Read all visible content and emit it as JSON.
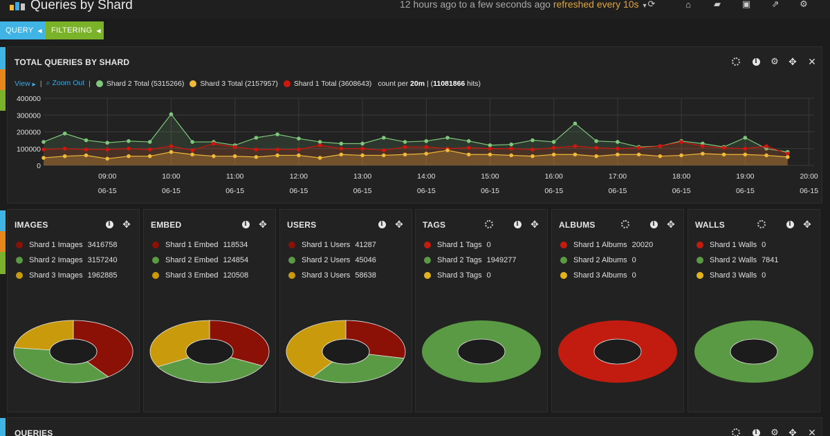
{
  "app": {
    "title": "Queries by Shard",
    "time_range": "12 hours ago to a few seconds ago",
    "refresh": "refreshed every 10s"
  },
  "nav_icons": [
    "refresh-icon",
    "home-icon",
    "folder-open-icon",
    "save-icon",
    "share-icon",
    "gear-icon"
  ],
  "pills": {
    "query": "QUERY",
    "filtering": "FILTERING"
  },
  "colors": {
    "shard1": "#c11c0f",
    "shard1_dark": "#8b1106",
    "shard2": "#5b9a45",
    "shard2_light": "#7fc87b",
    "shard3": "#e2b21f",
    "shard3_dark": "#c99a0c",
    "accent": "#3fa8e0"
  },
  "main_panel": {
    "title": "TOTAL QUERIES BY SHARD",
    "view_label": "View",
    "zoom_label": "Zoom Out",
    "legend": [
      {
        "label": "Shard 2 Total (5315266)"
      },
      {
        "label": "Shard 3 Total (2157957)"
      },
      {
        "label": "Shard 1 Total (3608643)"
      }
    ],
    "count_prefix": "count per",
    "interval": "20m",
    "hits_open": "| (",
    "hits": "11081866",
    "hits_close": "hits)"
  },
  "chart_data": {
    "type": "area",
    "title": "TOTAL QUERIES BY SHARD",
    "x_ticks": [
      {
        "time": "09:00",
        "date": "06-15"
      },
      {
        "time": "10:00",
        "date": "06-15"
      },
      {
        "time": "11:00",
        "date": "06-15"
      },
      {
        "time": "12:00",
        "date": "06-15"
      },
      {
        "time": "13:00",
        "date": "06-15"
      },
      {
        "time": "14:00",
        "date": "06-15"
      },
      {
        "time": "15:00",
        "date": "06-15"
      },
      {
        "time": "16:00",
        "date": "06-15"
      },
      {
        "time": "17:00",
        "date": "06-15"
      },
      {
        "time": "18:00",
        "date": "06-15"
      },
      {
        "time": "19:00",
        "date": "06-15"
      },
      {
        "time": "20:00",
        "date": "06-15"
      }
    ],
    "y_ticks": [
      0,
      100000,
      200000,
      300000,
      400000
    ],
    "y_tick_labels": [
      "0",
      "100000",
      "200000",
      "300000",
      "400000"
    ],
    "ylim": [
      0,
      400000
    ],
    "x_hours_start": 8.0,
    "x_hours_step": 0.3333,
    "series": [
      {
        "name": "Shard 2 Total (5315266)",
        "color": "#7fc87b",
        "values": [
          140000,
          190000,
          150000,
          135000,
          145000,
          140000,
          305000,
          140000,
          140000,
          120000,
          165000,
          185000,
          160000,
          140000,
          130000,
          130000,
          165000,
          140000,
          145000,
          165000,
          145000,
          120000,
          125000,
          150000,
          140000,
          250000,
          145000,
          140000,
          110000,
          115000,
          145000,
          130000,
          110000,
          165000,
          100000,
          80000
        ]
      },
      {
        "name": "Shard 1 Total (3608643)",
        "color": "#d0160d",
        "values": [
          95000,
          100000,
          95000,
          95000,
          100000,
          95000,
          115000,
          90000,
          130000,
          110000,
          95000,
          95000,
          95000,
          120000,
          100000,
          100000,
          90000,
          110000,
          110000,
          100000,
          105000,
          100000,
          100000,
          95000,
          105000,
          115000,
          105000,
          100000,
          105000,
          115000,
          140000,
          115000,
          105000,
          100000,
          115000,
          70000
        ]
      },
      {
        "name": "Shard 3 Total (2157957)",
        "color": "#f0b93a",
        "values": [
          45000,
          55000,
          60000,
          40000,
          55000,
          55000,
          80000,
          65000,
          55000,
          55000,
          50000,
          60000,
          60000,
          45000,
          65000,
          60000,
          60000,
          65000,
          70000,
          90000,
          65000,
          65000,
          60000,
          55000,
          65000,
          65000,
          55000,
          65000,
          65000,
          55000,
          60000,
          70000,
          65000,
          65000,
          60000,
          50000
        ]
      }
    ]
  },
  "panels": [
    {
      "id": "images",
      "title": "IMAGES",
      "has_spinner": false,
      "items": [
        {
          "label": "Shard 1 Images",
          "value": "3416758"
        },
        {
          "label": "Shard 2 Images",
          "value": "3157240"
        },
        {
          "label": "Shard 3 Images",
          "value": "1962885"
        }
      ],
      "pie": [
        3416758,
        3157240,
        1962885
      ]
    },
    {
      "id": "embed",
      "title": "EMBED",
      "has_spinner": false,
      "items": [
        {
          "label": "Shard 1 Embed",
          "value": "118534"
        },
        {
          "label": "Shard 2 Embed",
          "value": "124854"
        },
        {
          "label": "Shard 3 Embed",
          "value": "120508"
        }
      ],
      "pie": [
        118534,
        124854,
        120508
      ]
    },
    {
      "id": "users",
      "title": "USERS",
      "has_spinner": false,
      "items": [
        {
          "label": "Shard 1 Users",
          "value": "41287"
        },
        {
          "label": "Shard 2 Users",
          "value": "45046"
        },
        {
          "label": "Shard 3 Users",
          "value": "58638"
        }
      ],
      "pie": [
        41287,
        45046,
        58638
      ]
    },
    {
      "id": "tags",
      "title": "TAGS",
      "has_spinner": true,
      "items": [
        {
          "label": "Shard 1 Tags",
          "value": "0"
        },
        {
          "label": "Shard 2 Tags",
          "value": "1949277"
        },
        {
          "label": "Shard 3 Tags",
          "value": "0"
        }
      ],
      "pie": [
        0,
        1949277,
        0
      ]
    },
    {
      "id": "albums",
      "title": "ALBUMS",
      "has_spinner": true,
      "items": [
        {
          "label": "Shard 1 Albums",
          "value": "20020"
        },
        {
          "label": "Shard 2 Albums",
          "value": "0"
        },
        {
          "label": "Shard 3 Albums",
          "value": "0"
        }
      ],
      "pie": [
        20020,
        0,
        0
      ]
    },
    {
      "id": "walls",
      "title": "WALLS",
      "has_spinner": true,
      "items": [
        {
          "label": "Shard 1 Walls",
          "value": "0"
        },
        {
          "label": "Shard 2 Walls",
          "value": "7841"
        },
        {
          "label": "Shard 3 Walls",
          "value": "0"
        }
      ],
      "pie": [
        0,
        7841,
        0
      ]
    }
  ],
  "bottom_panel": {
    "title": "QUERIES"
  }
}
